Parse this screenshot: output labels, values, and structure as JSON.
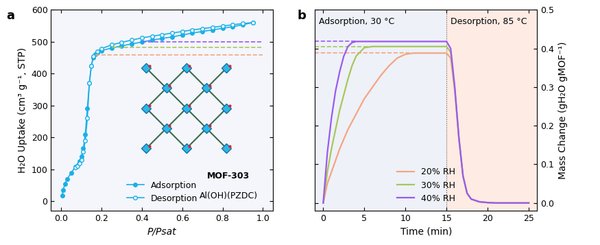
{
  "chart_data": [
    {
      "type": "line",
      "panel_label": "a",
      "x_label": "P/Psat",
      "y_label": "H₂O Uptake (cm³ g⁻¹, STP)",
      "xlim": [
        -0.05,
        1.05
      ],
      "xticks": [
        {
          "value": 0.0,
          "label": "0.0"
        },
        0.2,
        0.4,
        0.6,
        0.8,
        {
          "value": 1.0,
          "label": "1.0"
        }
      ],
      "ylim": [
        -30,
        600
      ],
      "yticks": [
        0,
        100,
        200,
        300,
        400,
        500,
        600
      ],
      "legend": "lower center",
      "annotations": [
        "MOF-303",
        "Al(OH)(PZDC)"
      ],
      "series": [
        {
          "name": "Adsorption",
          "color": "#1ab0e8",
          "marker": "circle",
          "x": [
            0.005,
            0.01,
            0.02,
            0.03,
            0.05,
            0.07,
            0.09,
            0.1,
            0.11,
            0.12,
            0.13,
            0.14,
            0.15,
            0.16,
            0.17,
            0.18,
            0.2,
            0.25,
            0.3,
            0.35,
            0.4,
            0.45,
            0.5,
            0.55,
            0.6,
            0.65,
            0.7,
            0.75,
            0.8,
            0.85,
            0.9,
            0.95
          ],
          "values": [
            18,
            35,
            55,
            70,
            88,
            108,
            125,
            140,
            165,
            210,
            290,
            370,
            425,
            450,
            460,
            465,
            472,
            480,
            487,
            493,
            499,
            505,
            510,
            515,
            521,
            527,
            532,
            537,
            542,
            547,
            553,
            560
          ]
        },
        {
          "name": "Desorption",
          "color": "#1ab0e8",
          "marker": "open_circle",
          "x": [
            0.07,
            0.08,
            0.09,
            0.1,
            0.11,
            0.12,
            0.13,
            0.14,
            0.15,
            0.16,
            0.18,
            0.2,
            0.25,
            0.3,
            0.35,
            0.4,
            0.45,
            0.5,
            0.55,
            0.6,
            0.65,
            0.7,
            0.75,
            0.8,
            0.85,
            0.9,
            0.95
          ],
          "values": [
            105,
            110,
            118,
            130,
            155,
            190,
            260,
            370,
            425,
            455,
            470,
            478,
            490,
            498,
            505,
            512,
            517,
            522,
            527,
            532,
            537,
            541,
            545,
            549,
            553,
            557,
            560
          ]
        }
      ],
      "hlines": [
        {
          "value": 500,
          "color": "#9b59f0",
          "xmin": 0.4,
          "xmax": 1.0
        },
        {
          "value": 483,
          "color": "#a8c75a",
          "xmin": 0.25,
          "xmax": 1.0
        },
        {
          "value": 458,
          "color": "#f4a582",
          "xmin": 0.17,
          "xmax": 1.0
        }
      ]
    },
    {
      "type": "line",
      "panel_label": "b",
      "x_label": "Time (min)",
      "y_label": "Mass Change (gH₂O gMOF⁻¹)",
      "xlim": [
        -1,
        26
      ],
      "xticks": [
        0,
        5,
        10,
        15,
        20,
        25
      ],
      "ylim": [
        -0.02,
        0.5
      ],
      "yticks": [
        {
          "value": 0.0,
          "label": "0.0"
        },
        0.1,
        0.2,
        0.3,
        0.4,
        0.5
      ],
      "legend": "lower center",
      "regions": [
        {
          "label": "Adsorption, 30 °C",
          "xmin": -1,
          "xmax": 15,
          "color": "#eef1f8"
        },
        {
          "label": "Desorption, 85 °C",
          "xmin": 15,
          "xmax": 26,
          "color": "#fdebe4"
        }
      ],
      "x": [
        0,
        0.5,
        1,
        1.5,
        2,
        2.5,
        3,
        3.5,
        4,
        5,
        6,
        7,
        8,
        9,
        10,
        11,
        12,
        13,
        14,
        15,
        15.5,
        16,
        16.5,
        17,
        17.5,
        18,
        19,
        20,
        21,
        22,
        23,
        24,
        25
      ],
      "series": [
        {
          "name": "20% RH",
          "color": "#f4a582",
          "values": [
            0,
            0.05,
            0.08,
            0.11,
            0.14,
            0.165,
            0.19,
            0.21,
            0.23,
            0.27,
            0.3,
            0.33,
            0.355,
            0.375,
            0.385,
            0.388,
            0.388,
            0.388,
            0.388,
            0.388,
            0.375,
            0.29,
            0.165,
            0.07,
            0.025,
            0.01,
            0.003,
            0.001,
            0,
            0,
            0,
            0,
            0
          ]
        },
        {
          "name": "30% RH",
          "color": "#a8c75a",
          "values": [
            0,
            0.08,
            0.14,
            0.19,
            0.24,
            0.28,
            0.32,
            0.355,
            0.38,
            0.402,
            0.405,
            0.405,
            0.405,
            0.405,
            0.405,
            0.405,
            0.405,
            0.405,
            0.405,
            0.405,
            0.39,
            0.295,
            0.168,
            0.07,
            0.025,
            0.01,
            0.003,
            0.001,
            0,
            0,
            0,
            0,
            0
          ]
        },
        {
          "name": "40% RH",
          "color": "#9b59f0",
          "values": [
            0,
            0.13,
            0.22,
            0.29,
            0.34,
            0.38,
            0.405,
            0.415,
            0.418,
            0.418,
            0.418,
            0.418,
            0.418,
            0.418,
            0.418,
            0.418,
            0.418,
            0.418,
            0.418,
            0.418,
            0.4,
            0.3,
            0.17,
            0.07,
            0.025,
            0.01,
            0.003,
            0.001,
            0,
            0,
            0,
            0,
            0
          ]
        }
      ],
      "hlines": [
        {
          "value": 0.418,
          "color": "#9b59f0",
          "xmin": -1,
          "xmax": 4
        },
        {
          "value": 0.405,
          "color": "#a8c75a",
          "xmin": -1,
          "xmax": 5.5
        },
        {
          "value": 0.388,
          "color": "#f4a582",
          "xmin": -1,
          "xmax": 10.5
        }
      ]
    }
  ]
}
